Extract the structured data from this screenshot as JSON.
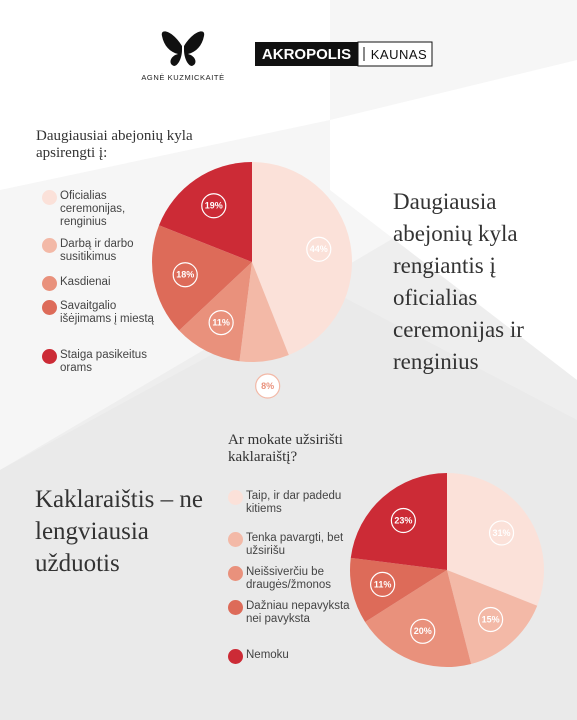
{
  "brand": {
    "designer": "AGNĖ KUZMICKAITĖ",
    "mall": "AKROPOLIS",
    "city": "KAUNAS"
  },
  "headlines": [
    "Daugiausia abejonių kyla rengiantis į oficialias ceremonijas ir renginius",
    "Kaklaraištis – ne lengviausia užduotis"
  ],
  "chart_data": [
    {
      "type": "pie",
      "title": "Daugiausiai abejonių kyla apsirengti į:",
      "categories": [
        "Oficialias ceremonijas, renginius",
        "Darbą ir darbo susitikimus",
        "Kasdienai",
        "Savaitgalio išėjimams į miestą",
        "Staiga pasikeitus orams"
      ],
      "values": [
        44,
        8,
        11,
        18,
        19
      ],
      "value_labels": [
        "44%",
        "8%",
        "11%",
        "18%",
        "19%"
      ],
      "colors": [
        "#fbe1d9",
        "#f3b9a7",
        "#e9917c",
        "#dd6b59",
        "#cc2b36"
      ]
    },
    {
      "type": "pie",
      "title": "Ar mokate užsirišti kaklaraištį?",
      "categories": [
        "Taip, ir dar padedu kitiems",
        "Tenka pavargti, bet užsirišu",
        "Neišsiverčiu be draugės/žmonos",
        "Dažniau nepavyksta nei pavyksta",
        "Nemoku"
      ],
      "values": [
        31,
        15,
        20,
        11,
        23
      ],
      "value_labels": [
        "31%",
        "15%",
        "20%",
        "11%",
        "23%"
      ],
      "colors": [
        "#fbe1d9",
        "#f3b9a7",
        "#e9917c",
        "#dd6b59",
        "#cc2b36"
      ]
    }
  ]
}
